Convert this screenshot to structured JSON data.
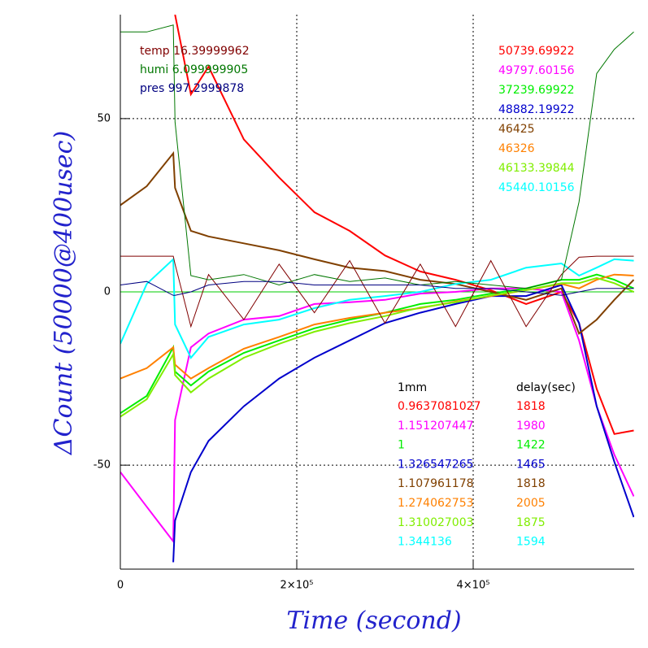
{
  "chart_data": {
    "type": "line",
    "xlabel": "Time (second)",
    "ylabel": "ΔCount (50000@400usec)",
    "xlim": [
      0,
      582500
    ],
    "ylim": [
      -80,
      80
    ],
    "xticks": [
      0,
      {
        "value": 200000,
        "label": "2×10⁵"
      },
      {
        "value": 400000,
        "label": "4×10⁵"
      }
    ],
    "yticks": [
      -50,
      0,
      50
    ],
    "grid": true,
    "x": [
      0,
      30000,
      60000,
      62000,
      80000,
      100000,
      140000,
      180000,
      220000,
      260000,
      300000,
      340000,
      380000,
      420000,
      460000,
      500000,
      520000,
      540000,
      560000,
      582000
    ],
    "series": [
      {
        "name": "0.9637081027",
        "color": "#ff0000",
        "width": 2,
        "values": [
          null,
          null,
          null,
          80,
          57,
          65,
          44,
          33,
          23,
          17.6,
          10.5,
          5.9,
          3.5,
          0.5,
          -3.5,
          0,
          -9,
          -28,
          -41,
          -40
        ]
      },
      {
        "name": "1.151207447",
        "color": "#ff00ff",
        "width": 2,
        "values": [
          -52,
          -62,
          -72,
          -37,
          -16,
          -12,
          -8,
          -7,
          -3.5,
          -3,
          -2.3,
          -0.5,
          0,
          1,
          1,
          0,
          -14,
          -33,
          -47,
          -59
        ]
      },
      {
        "name": "1",
        "color": "#00ee00",
        "width": 2,
        "values": [
          -35,
          -30,
          -16,
          -23,
          -27,
          -23,
          -17.6,
          -14,
          -10.5,
          -8,
          -6,
          -3.5,
          -2.3,
          -0.5,
          1,
          3.5,
          3.5,
          5,
          3.5,
          1
        ]
      },
      {
        "name": "1.326547265",
        "color": "#0000cc",
        "width": 2,
        "values": [
          null,
          null,
          -78,
          -66,
          -52,
          -43,
          -33,
          -25,
          -19,
          -14,
          -9,
          -6,
          -3.5,
          -1.2,
          -1.2,
          2,
          -9,
          -33,
          -49,
          -65
        ]
      },
      {
        "name": "1.107961178",
        "color": "#804000",
        "width": 2,
        "values": [
          25,
          30.5,
          40,
          30,
          17.6,
          16,
          14,
          12,
          9.4,
          7,
          6,
          3.5,
          2.3,
          0,
          -2.3,
          1,
          -12,
          -8,
          -2.3,
          3.5
        ]
      },
      {
        "name": "1.274062753",
        "color": "#ff8000",
        "width": 2,
        "values": [
          -25,
          -22,
          -16,
          -21,
          -25,
          -22,
          -16.4,
          -13,
          -9.4,
          -7.5,
          -6,
          -4.7,
          -2.8,
          -1.2,
          0.5,
          2.3,
          1,
          3.5,
          5,
          4.7
        ]
      },
      {
        "name": "1.310027003",
        "color": "#80ee00",
        "width": 2,
        "values": [
          -36,
          -31,
          -18,
          -24,
          -29,
          -25,
          -19,
          -15,
          -11.5,
          -9,
          -7,
          -4.5,
          -3,
          -1,
          0.5,
          2.5,
          2.5,
          4,
          2.5,
          0
        ]
      },
      {
        "name": "1.344136",
        "color": "#00ffff",
        "width": 2,
        "values": [
          -15,
          2.3,
          9.4,
          -9.4,
          -19,
          -13,
          -9.4,
          -8,
          -4.7,
          -2.3,
          -1.2,
          0,
          2.3,
          3.5,
          7,
          8.2,
          4.7,
          7,
          9.4,
          9
        ]
      },
      {
        "name": "temp 16.39999962",
        "color": "#800000",
        "width": 1,
        "values": [
          10.3,
          10.3,
          10.3,
          8,
          -10,
          5,
          -8,
          8,
          -6,
          9,
          -9,
          8,
          -10,
          9,
          -10,
          5,
          10,
          10.3,
          10.3,
          10.3
        ]
      },
      {
        "name": "humi 6.099999905",
        "color": "#007700",
        "width": 1,
        "values": [
          75,
          75,
          77,
          49,
          4.7,
          3.5,
          5,
          2,
          5,
          3,
          4,
          2,
          3,
          2,
          1,
          3.5,
          26,
          63,
          70,
          75
        ]
      },
      {
        "name": "pres 997.2999878",
        "color": "#000080",
        "width": 1,
        "values": [
          2,
          3,
          -1,
          -1,
          0,
          2,
          3,
          3,
          2,
          2,
          2,
          2,
          1,
          1,
          0,
          -1,
          0,
          1,
          1,
          1
        ]
      }
    ],
    "legend_series": [
      8,
      9,
      10
    ],
    "top_values": [
      "50739.69922",
      "49797.60156",
      "37239.69922",
      "48882.19922",
      "46425",
      "46326",
      "46133.39844",
      "45440.10156"
    ],
    "table": {
      "headers": [
        "1mm",
        "delay(sec)"
      ],
      "delays": [
        "1818",
        "1980",
        "1422",
        "1465",
        "1818",
        "2005",
        "1875",
        "1594"
      ]
    }
  }
}
